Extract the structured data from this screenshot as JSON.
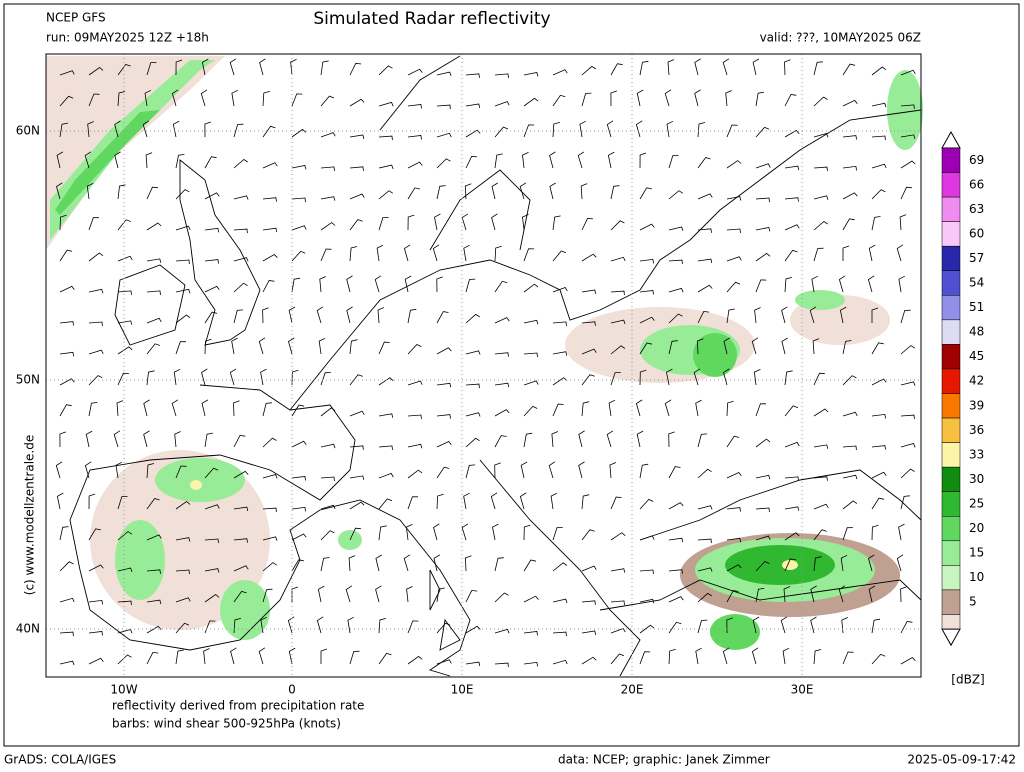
{
  "header": {
    "model": "NCEP GFS",
    "run": "run: 09MAY2025 12Z +18h",
    "title": "Simulated Radar reflectivity",
    "valid": "valid: ???, 10MAY2025 06Z"
  },
  "map": {
    "lat_labels": [
      "60N",
      "50N",
      "40N"
    ],
    "lon_labels": [
      "10W",
      "0",
      "10E",
      "20E",
      "30E"
    ],
    "copyright": "(c)  www.modellzentrale.de",
    "notes": [
      "reflectivity derived from precipitation rate",
      "barbs: wind shear 500-925hPa (knots)"
    ]
  },
  "colorbar": {
    "unit": "[dBZ]",
    "levels": [
      {
        "value": 69,
        "color": "#9c00b4"
      },
      {
        "value": 66,
        "color": "#e038e0"
      },
      {
        "value": 63,
        "color": "#f08cf0"
      },
      {
        "value": 60,
        "color": "#f8c8f8"
      },
      {
        "value": 57,
        "color": "#2828a8"
      },
      {
        "value": 54,
        "color": "#5050d0"
      },
      {
        "value": 51,
        "color": "#9090e8"
      },
      {
        "value": 48,
        "color": "#dcdcf4"
      },
      {
        "value": 45,
        "color": "#a00000"
      },
      {
        "value": 42,
        "color": "#e81800"
      },
      {
        "value": 39,
        "color": "#f87800"
      },
      {
        "value": 36,
        "color": "#f8c040"
      },
      {
        "value": 33,
        "color": "#fcf4a8"
      },
      {
        "value": 30,
        "color": "#108c10"
      },
      {
        "value": 25,
        "color": "#30b830"
      },
      {
        "value": 20,
        "color": "#60d860"
      },
      {
        "value": 15,
        "color": "#98ec98"
      },
      {
        "value": 10,
        "color": "#c8f4c0"
      },
      {
        "value": 5,
        "color": "#c0a090"
      }
    ],
    "bottom_color": "#f0e0d8"
  },
  "footer": {
    "software": "GrADS: COLA/IGES",
    "credits": "data: NCEP; graphic: Janek Zimmer",
    "timestamp": "2025-05-09-17:42"
  }
}
